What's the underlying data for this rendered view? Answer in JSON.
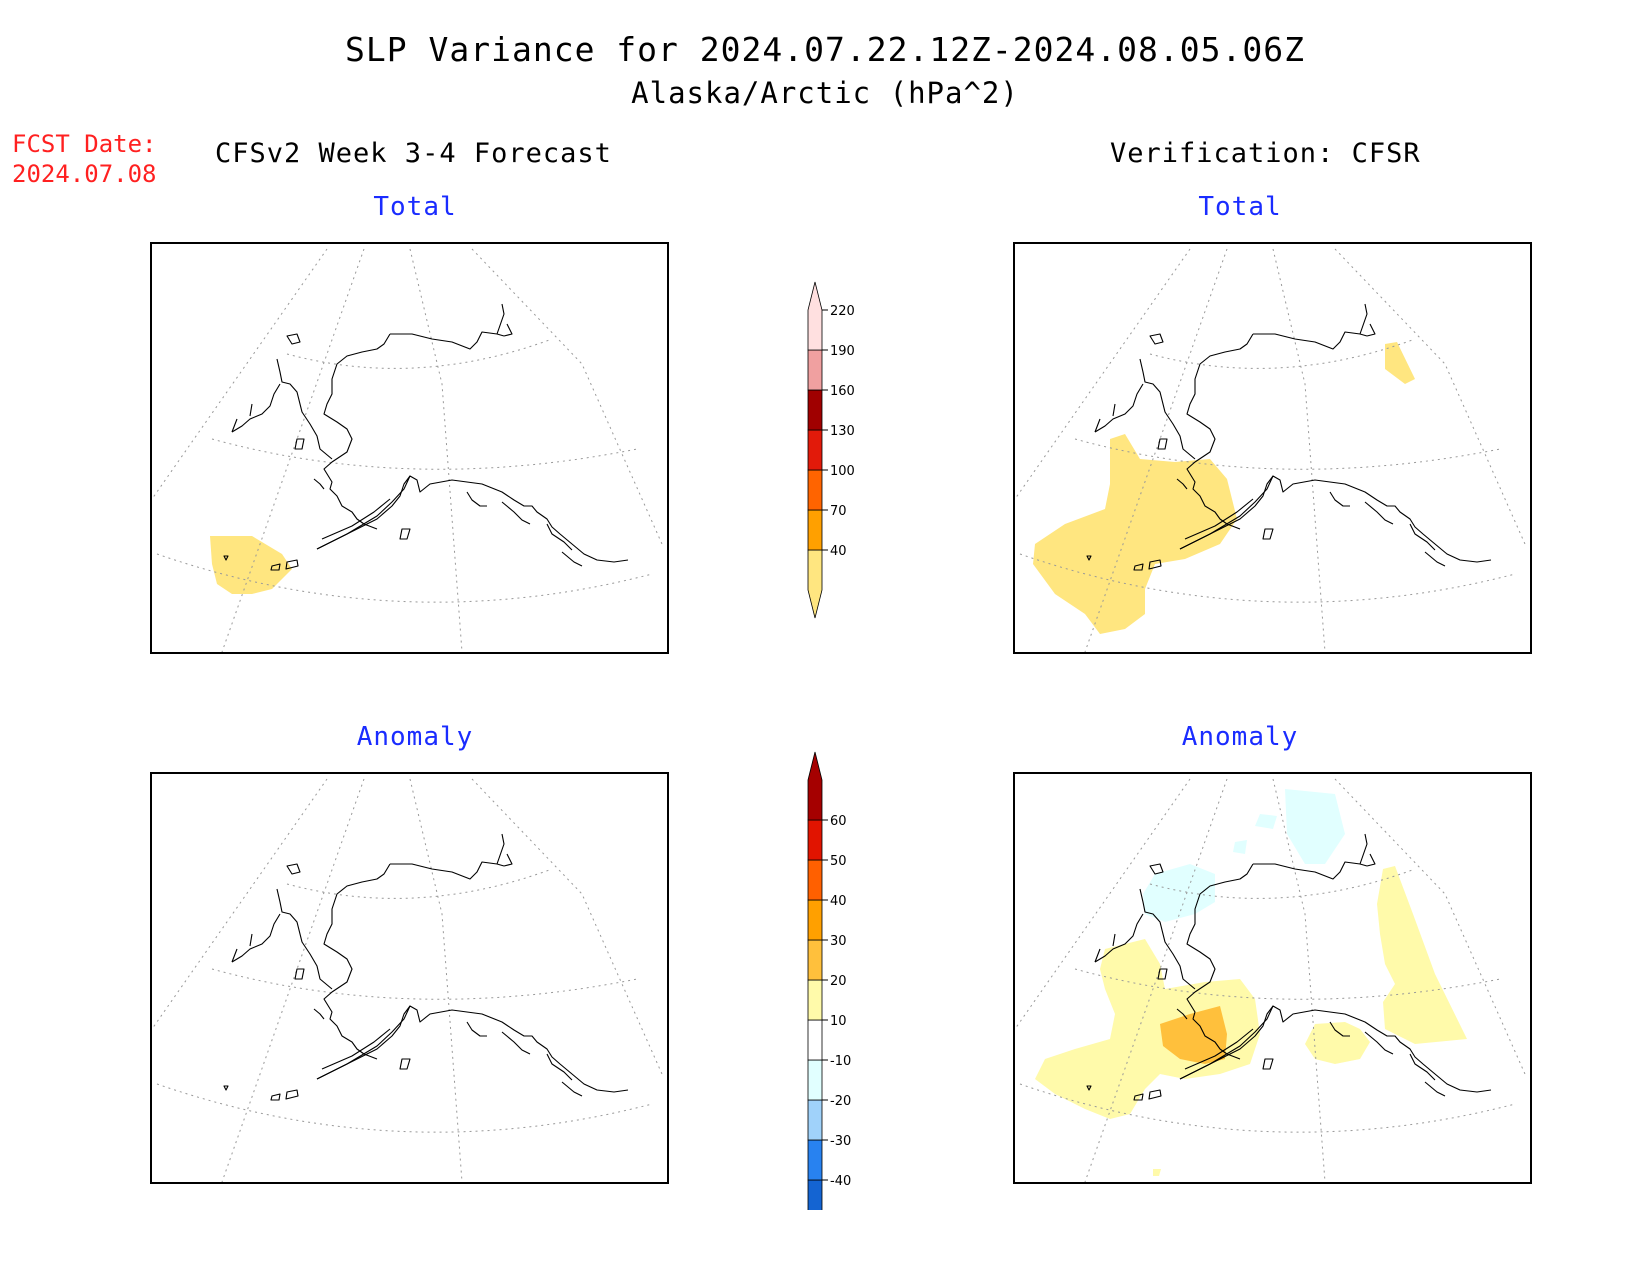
{
  "header": {
    "title": "SLP Variance for 2024.07.22.12Z-2024.08.05.06Z",
    "subtitle": "Alaska/Arctic (hPa^2)"
  },
  "fcst_date": {
    "label": "FCST Date:",
    "value": "2024.07.08"
  },
  "columns": {
    "left": "CFSv2 Week 3-4 Forecast",
    "right": "Verification: CFSR"
  },
  "panels": {
    "forecast_total": {
      "title": "Total"
    },
    "verification_total": {
      "title": "Total"
    },
    "forecast_anomaly": {
      "title": "Anomaly"
    },
    "verification_anomaly": {
      "title": "Anomaly"
    }
  },
  "colorbars": {
    "total": {
      "levels": [
        "40",
        "70",
        "100",
        "130",
        "160",
        "190",
        "220"
      ],
      "colors": [
        "#ffe680",
        "#ffa000",
        "#ff6400",
        "#e21a0a",
        "#a00000",
        "#f0a0a0",
        "#ffe0e0"
      ]
    },
    "anomaly": {
      "levels": [
        "-40",
        "-30",
        "-20",
        "-10",
        "10",
        "20",
        "30",
        "40",
        "50",
        "60"
      ],
      "colors": [
        "#1464d2",
        "#2882f0",
        "#a0d2fa",
        "#e1ffff",
        "#ffffff",
        "#fffaaa",
        "#ffc03c",
        "#ffa000",
        "#ff6000",
        "#e11400",
        "#a50000"
      ]
    }
  },
  "colors": {
    "land_outline": "#000000",
    "grid": "#999999",
    "fcst_text": "#ff2020",
    "panel_title": "#1a2cff"
  }
}
